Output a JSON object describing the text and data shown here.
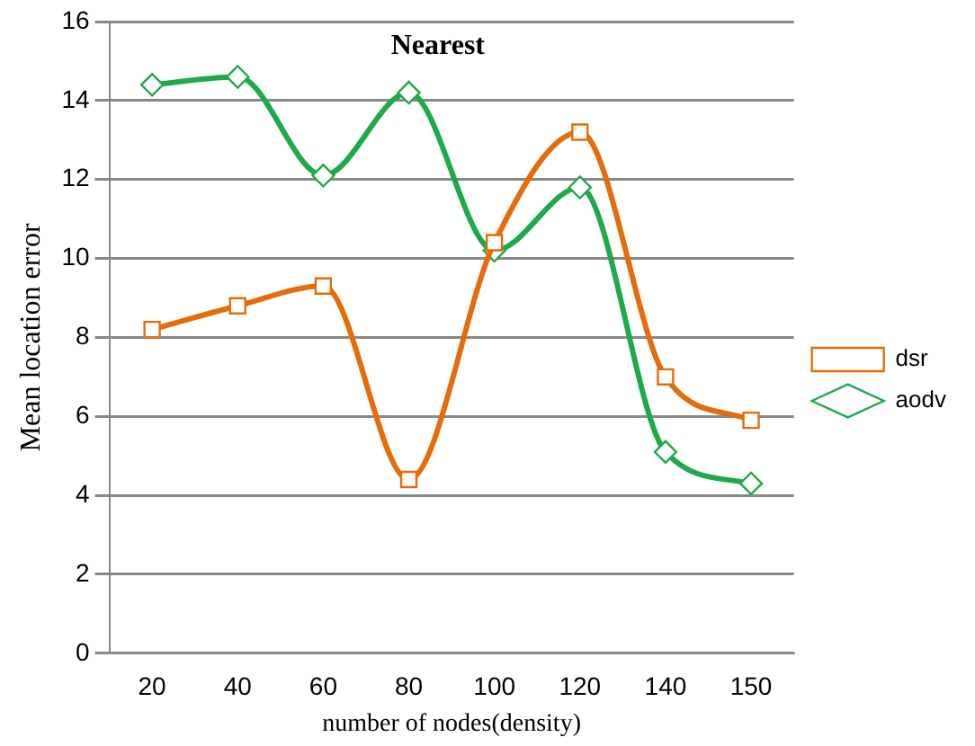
{
  "chart_data": {
    "type": "line",
    "title": "Nearest",
    "xlabel": "number of nodes(density)",
    "ylabel": "Mean location error",
    "categories": [
      "20",
      "40",
      "60",
      "80",
      "100",
      "120",
      "140",
      "150"
    ],
    "series": [
      {
        "name": "aodv",
        "color": "#1faa4a",
        "marker": "diamond",
        "values": [
          14.4,
          14.6,
          12.1,
          14.2,
          10.2,
          11.8,
          5.1,
          4.3
        ]
      },
      {
        "name": "dsr",
        "color": "#e46c0a",
        "marker": "square",
        "values": [
          8.2,
          8.8,
          9.3,
          4.4,
          10.4,
          13.2,
          7.0,
          5.9
        ]
      }
    ],
    "ylim": [
      0,
      16
    ],
    "yticks": [
      0,
      2,
      4,
      6,
      8,
      10,
      12,
      14,
      16
    ],
    "grid": "y",
    "legend": "right",
    "line_style": "solid"
  }
}
